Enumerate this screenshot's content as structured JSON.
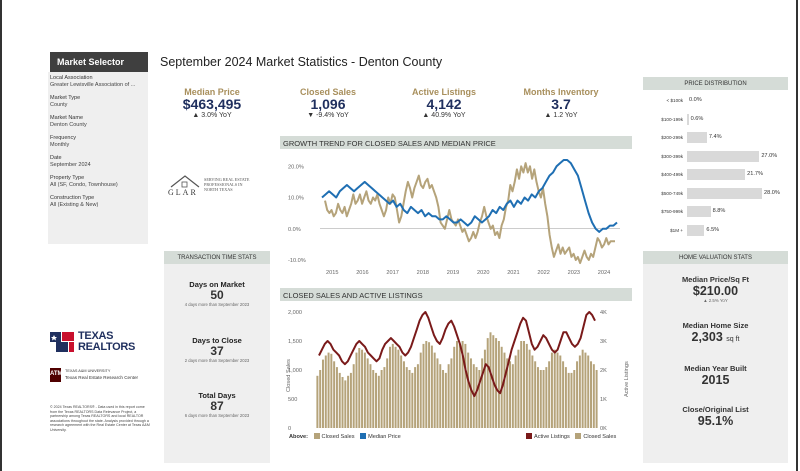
{
  "title": "September 2024 Market Statistics - Denton County",
  "selector": {
    "heading": "Market Selector",
    "fields": [
      {
        "label": "Local Association",
        "value": "Greater Lewisville Association of ..."
      },
      {
        "label": "Market Type",
        "value": "County"
      },
      {
        "label": "Market Name",
        "value": "Denton County"
      },
      {
        "label": "Frequency",
        "value": "Monthly"
      },
      {
        "label": "Date",
        "value": "September 2024"
      },
      {
        "label": "Property Type",
        "value": "All (SF, Condo, Townhouse)"
      },
      {
        "label": "Construction Type",
        "value": "All (Existing & New)"
      }
    ]
  },
  "kpis": [
    {
      "label": "Median Price",
      "value": "$463,495",
      "yoy": "▲ 3.0% YoY"
    },
    {
      "label": "Closed Sales",
      "value": "1,096",
      "yoy": "▼ -9.4% YoY"
    },
    {
      "label": "Active Listings",
      "value": "4,142",
      "yoy": "▲ 40.9% YoY"
    },
    {
      "label": "Months Inventory",
      "value": "3.7",
      "yoy": "▲ 1.2 YoY"
    }
  ],
  "glar": {
    "name": "GLAR",
    "tagline": [
      "SERVING REAL ESTATE",
      "PROFESSIONALS IN",
      "NORTH TEXAS"
    ]
  },
  "logos": {
    "texas_realtors": [
      "TEXAS",
      "REALTORS"
    ],
    "tam_box": "ATM",
    "tam_univ": "TEXAS A&M UNIVERSITY",
    "tam_center": "Texas Real Estate Research Center"
  },
  "disclaimer": "© 2024 Texas REALTORS® - Data used in this report come from the Texas REALTORS Data Relevance Project, a partnership among Texas REALTORS and local REALTOR associations throughout the state. Analysis provided through a research agreement with the Real Estate Center at Texas A&M University.",
  "transaction_stats": {
    "heading": "TRANSACTION TIME STATS",
    "items": [
      {
        "label": "Days on Market",
        "value": "50",
        "note": "4 days more than September 2023"
      },
      {
        "label": "Days to Close",
        "value": "37",
        "note": "2 days more than September 2023"
      },
      {
        "label": "Total Days",
        "value": "87",
        "note": "6 days more than September 2023"
      }
    ]
  },
  "price_distribution": {
    "heading": "PRICE DISTRIBUTION",
    "rows": [
      {
        "label": "< $100k",
        "value": "0.0%",
        "pct": 0.0
      },
      {
        "label": "$100-199k",
        "value": "0.6%",
        "pct": 0.6
      },
      {
        "label": "$200-299k",
        "value": "7.4%",
        "pct": 7.4
      },
      {
        "label": "$300-399k",
        "value": "27.0%",
        "pct": 27.0
      },
      {
        "label": "$400-499k",
        "value": "21.7%",
        "pct": 21.7
      },
      {
        "label": "$500-749k",
        "value": "28.0%",
        "pct": 28.0
      },
      {
        "label": "$750-999k",
        "value": "8.8%",
        "pct": 8.8
      },
      {
        "label": "$1M +",
        "value": "6.5%",
        "pct": 6.5
      }
    ]
  },
  "home_valuation": {
    "heading": "HOME VALUATION STATS",
    "items": [
      {
        "label": "Median Price/Sq Ft",
        "value": "$210.00",
        "sub": "▲ 2.5% YoY",
        "unit": ""
      },
      {
        "label": "Median Home Size",
        "value": "2,303",
        "sub": "",
        "unit": "sq ft"
      },
      {
        "label": "Median Year Built",
        "value": "2015",
        "sub": "",
        "unit": ""
      },
      {
        "label": "Close/Original List",
        "value": "95.1%",
        "sub": "",
        "unit": ""
      }
    ]
  },
  "chart_data": [
    {
      "type": "line",
      "title": "GROWTH TREND FOR CLOSED SALES AND MEDIAN PRICE",
      "x_ticks": [
        "2015",
        "2016",
        "2017",
        "2018",
        "2019",
        "2020",
        "2021",
        "2022",
        "2023",
        "2024"
      ],
      "y_ticks": [
        "20.0%",
        "10.0%",
        "0.0%",
        "-10.0%"
      ],
      "ylim": [
        -10,
        22
      ],
      "series": [
        {
          "name": "Closed Sales",
          "color": "#b5a37a",
          "values": [
            9,
            6,
            5,
            6,
            4,
            5,
            8,
            6,
            5,
            7,
            4,
            6,
            8,
            11,
            8,
            9,
            11,
            8,
            10,
            12,
            9,
            8,
            10,
            9,
            11,
            8,
            6,
            4,
            6,
            10,
            8,
            11,
            10,
            6,
            2,
            4,
            8,
            12,
            15,
            13,
            10,
            13,
            15,
            17,
            14,
            13,
            15,
            16,
            13,
            14,
            12,
            10,
            7,
            2,
            1,
            0,
            3,
            6,
            3,
            2,
            1,
            3,
            1,
            -1,
            0,
            -2,
            -4,
            -3,
            -1,
            -3,
            -1,
            2,
            4,
            7,
            4,
            2,
            0,
            1,
            -2,
            -1,
            -3,
            1,
            3,
            7,
            9,
            14,
            12,
            15,
            19,
            16,
            20,
            18,
            21,
            18,
            20,
            16,
            19,
            15,
            12,
            10,
            13,
            8,
            4,
            -2,
            -6,
            -9,
            -7,
            -5,
            -8,
            -6,
            -8,
            -7,
            -6,
            -9,
            -8,
            -10,
            -9,
            -11,
            -9,
            -7,
            -9,
            -10,
            -8,
            -9,
            -6,
            -3,
            -4,
            -6,
            -5,
            -3,
            -5,
            -4,
            -4,
            -4
          ]
        },
        {
          "name": "Median Price",
          "color": "#1f6fb3",
          "values": [
            10,
            11,
            12,
            11,
            10,
            12,
            13,
            14,
            13,
            12,
            13,
            14,
            15,
            14,
            13,
            12,
            11,
            10,
            9,
            8,
            9,
            7,
            8,
            6,
            5,
            7,
            6,
            5,
            6,
            4,
            5,
            4,
            4,
            3,
            3,
            4,
            3,
            2,
            2,
            3,
            2,
            1,
            2,
            4,
            3,
            2,
            3,
            4,
            6,
            5,
            7,
            6,
            8,
            9,
            7,
            9,
            8,
            10,
            9,
            11,
            10,
            12,
            13,
            15,
            17,
            18,
            20,
            21,
            22,
            22,
            21,
            19,
            17,
            13,
            9,
            5,
            2,
            0,
            -1,
            0,
            0,
            1,
            1,
            2
          ]
        }
      ]
    },
    {
      "type": "bar",
      "title": "CLOSED SALES AND ACTIVE LISTINGS",
      "y_ticks_left": [
        "2,000",
        "1,500",
        "1,000",
        "500",
        "0"
      ],
      "y_ticks_right": [
        "4K",
        "3K",
        "2K",
        "1K",
        "0K"
      ],
      "ylabel_left": "Closed Sales",
      "ylabel_right": "Active Listings",
      "ylim_left": [
        0,
        2000
      ],
      "ylim_right": [
        0,
        4000
      ],
      "legend_left_label": "Above:",
      "legend": [
        "Closed Sales",
        "Median Price",
        "Active Listings",
        "Closed Sales"
      ],
      "series": [
        {
          "name": "Closed Sales",
          "color": "#b5a37a",
          "values": [
            900,
            1000,
            1180,
            1250,
            1300,
            1280,
            1150,
            1050,
            950,
            880,
            820,
            900,
            950,
            1100,
            1300,
            1380,
            1350,
            1300,
            1200,
            1100,
            1000,
            950,
            900,
            1000,
            1050,
            1200,
            1400,
            1450,
            1400,
            1350,
            1250,
            1150,
            1050,
            1000,
            950,
            1050,
            1100,
            1300,
            1450,
            1500,
            1480,
            1420,
            1300,
            1200,
            1100,
            1000,
            950,
            1100,
            1200,
            1400,
            1500,
            1450,
            1500,
            1450,
            1300,
            1200,
            1100,
            1050,
            1000,
            1200,
            1350,
            1550,
            1650,
            1600,
            1550,
            1500,
            1400,
            1300,
            1200,
            1150,
            1100,
            1250,
            1350,
            1500,
            1500,
            1450,
            1350,
            1250,
            1150,
            1050,
            1000,
            1000,
            1050,
            1150,
            1300,
            1350,
            1300,
            1250,
            1150,
            1050,
            950,
            950,
            1000,
            1150,
            1250,
            1350,
            1300,
            1250,
            1150,
            1100,
            1000
          ]
        },
        {
          "name": "Active Listings",
          "color": "#7a1a1a",
          "values": [
            2500,
            2700,
            2900,
            3000,
            2900,
            2700,
            2600,
            2500,
            2300,
            2200,
            2300,
            2500,
            2700,
            2900,
            3000,
            2900,
            2800,
            2600,
            2500,
            2400,
            2300,
            2400,
            2700,
            2900,
            3000,
            3100,
            3000,
            2900,
            2800,
            2600,
            2500,
            2600,
            2800,
            3100,
            3400,
            3700,
            3900,
            4000,
            3800,
            3500,
            3200,
            3000,
            2900,
            3100,
            3400,
            3600,
            3700,
            3500,
            3200,
            2900,
            2500,
            2000,
            1600,
            1300,
            1100,
            1300,
            1600,
            1900,
            2200,
            2100,
            1800,
            1500,
            1300,
            1200,
            1500,
            1900,
            2300,
            2700,
            3000,
            3300,
            3600,
            3800,
            3700,
            3300,
            2900,
            2700,
            2800,
            3000,
            3200,
            3100,
            2900,
            2700,
            2600,
            2700,
            3000,
            3300,
            3300,
            3100,
            2900,
            2800,
            2900,
            3100,
            3500,
            3900,
            4000,
            3900,
            3700
          ]
        }
      ]
    }
  ]
}
